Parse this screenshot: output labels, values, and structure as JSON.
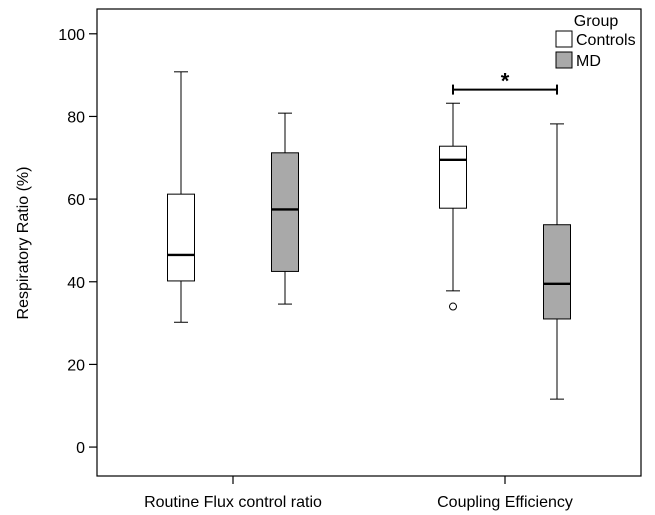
{
  "chart_data": {
    "type": "box",
    "ylabel": "Respiratory Ratio (%)",
    "xlabel": "",
    "ylim": [
      -7,
      106
    ],
    "yticks": [
      0,
      20,
      40,
      60,
      80,
      100
    ],
    "categories": [
      "Routine Flux control ratio",
      "Coupling Efficiency"
    ],
    "legend": {
      "title": "Group",
      "position": "top-right",
      "entries": [
        {
          "name": "Controls",
          "color": "#ffffff"
        },
        {
          "name": "MD",
          "color": "#a9a9a9"
        }
      ]
    },
    "series": [
      {
        "name": "Controls",
        "color": "#ffffff",
        "boxes": [
          {
            "min": 30.2,
            "q1": 40.2,
            "median": 46.5,
            "q3": 61.2,
            "max": 90.8,
            "outliers": []
          },
          {
            "min": 37.8,
            "q1": 57.8,
            "median": 69.5,
            "q3": 72.8,
            "max": 83.2,
            "outliers": [
              34.0
            ]
          }
        ]
      },
      {
        "name": "MD",
        "color": "#a9a9a9",
        "boxes": [
          {
            "min": 34.6,
            "q1": 42.5,
            "median": 57.5,
            "q3": 71.2,
            "max": 80.8,
            "outliers": []
          },
          {
            "min": 11.6,
            "q1": 31.0,
            "median": 39.5,
            "q3": 53.8,
            "max": 78.2,
            "outliers": []
          }
        ]
      }
    ],
    "annotations": [
      {
        "text": "*",
        "category": "Coupling Efficiency",
        "between": [
          "Controls",
          "MD"
        ],
        "y": 86.5
      }
    ]
  }
}
